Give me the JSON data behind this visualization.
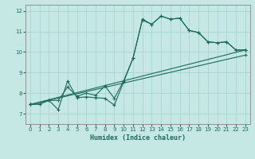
{
  "xlabel": "Humidex (Indice chaleur)",
  "xlim": [
    -0.5,
    23.5
  ],
  "ylim": [
    6.5,
    12.3
  ],
  "xticks": [
    0,
    1,
    2,
    3,
    4,
    5,
    6,
    7,
    8,
    9,
    10,
    11,
    12,
    13,
    14,
    15,
    16,
    17,
    18,
    19,
    20,
    21,
    22,
    23
  ],
  "yticks": [
    7,
    8,
    9,
    10,
    11,
    12
  ],
  "bg_color": "#c5e8e5",
  "line_color": "#1a6b5a",
  "grid_color": "#aad4d0",
  "spine_color": "#888888",
  "line1_x": [
    0,
    1,
    2,
    3,
    4,
    5,
    6,
    7,
    8,
    9,
    10,
    11,
    12,
    13,
    14,
    15,
    16,
    17,
    18,
    19,
    20,
    21,
    22,
    23
  ],
  "line1_y": [
    7.45,
    7.47,
    7.65,
    7.2,
    8.6,
    7.78,
    7.82,
    7.78,
    7.75,
    7.42,
    8.55,
    9.7,
    11.6,
    11.35,
    11.75,
    11.6,
    11.65,
    11.05,
    10.95,
    10.5,
    10.45,
    10.5,
    10.1,
    10.1
  ],
  "line2_x": [
    0,
    1,
    2,
    3,
    4,
    5,
    6,
    7,
    8,
    9,
    10,
    11,
    12,
    13,
    14,
    15,
    16,
    17,
    18,
    19,
    20,
    21,
    22,
    23
  ],
  "line2_y": [
    7.45,
    7.47,
    7.65,
    7.65,
    8.3,
    7.85,
    8.0,
    7.9,
    8.35,
    7.75,
    8.6,
    9.7,
    11.55,
    11.35,
    11.75,
    11.6,
    11.65,
    11.05,
    10.95,
    10.5,
    10.45,
    10.5,
    10.1,
    10.1
  ],
  "line3_x": [
    0,
    23
  ],
  "line3_y": [
    7.45,
    10.1
  ],
  "line4_x": [
    0,
    23
  ],
  "line4_y": [
    7.45,
    9.85
  ]
}
